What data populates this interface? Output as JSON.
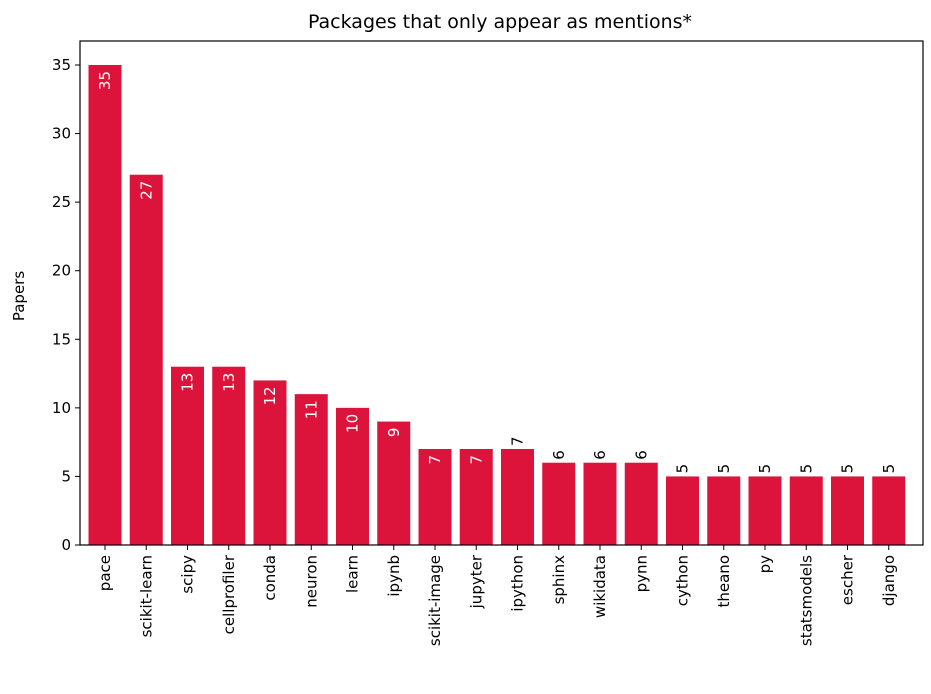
{
  "chart_data": {
    "type": "bar",
    "title": "Packages that only appear as mentions*",
    "xlabel": "",
    "ylabel": "Papers",
    "ylim": [
      0,
      36.75
    ],
    "yticks": [
      0,
      5,
      10,
      15,
      20,
      25,
      30,
      35
    ],
    "ytick_labels": [
      "0",
      "5",
      "10",
      "15",
      "20",
      "25",
      "30",
      "35"
    ],
    "grid": false,
    "bar_color": "#dc143c",
    "categories": [
      "pace",
      "scikit-learn",
      "scipy",
      "cellprofiler",
      "conda",
      "neuron",
      "learn",
      "ipynb",
      "scikit-image",
      "jupyter",
      "ipython",
      "sphinx",
      "wikidata",
      "pynn",
      "cython",
      "theano",
      "py",
      "statsmodels",
      "escher",
      "django"
    ],
    "values": [
      35,
      27,
      13,
      13,
      12,
      11,
      10,
      9,
      7,
      7,
      7,
      6,
      6,
      6,
      5,
      5,
      5,
      5,
      5,
      5
    ],
    "data_labels": [
      "35",
      "27",
      "13",
      "13",
      "12",
      "11",
      "10",
      "9",
      "7",
      "7",
      "7",
      "6",
      "6",
      "6",
      "5",
      "5",
      "5",
      "5",
      "5",
      "5"
    ],
    "label_inside": [
      true,
      true,
      true,
      true,
      true,
      true,
      true,
      true,
      true,
      true,
      false,
      false,
      false,
      false,
      false,
      false,
      false,
      false,
      false,
      false
    ]
  }
}
